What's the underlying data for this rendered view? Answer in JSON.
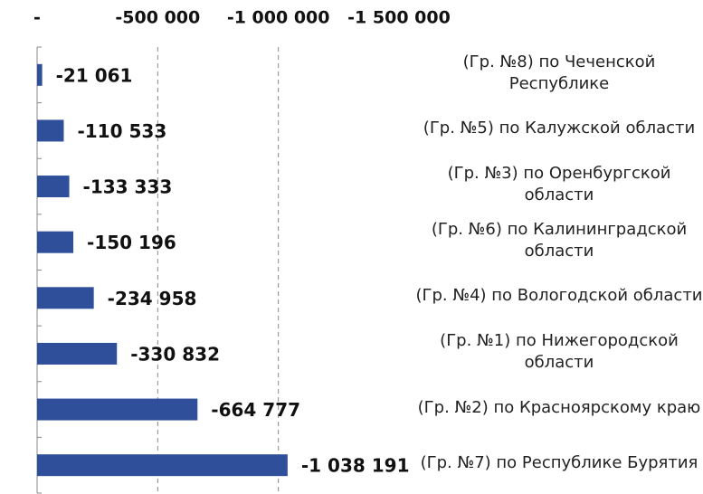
{
  "chart_data": {
    "type": "bar",
    "orientation": "horizontal",
    "categories": [
      "(Гр. №8) по Чеченской Республике",
      "(Гр. №5) по Калужской области",
      "(Гр. №3) по Оренбургской области",
      "(Гр. №6) по Калининградской области",
      "(Гр. №4) по Вологодской области",
      "(Гр. №1) по Нижегородской области",
      "(Гр. №2) по Красноярскому краю",
      "(Гр. №7) по Республике Бурятия"
    ],
    "values": [
      -21061,
      -110533,
      -133333,
      -150196,
      -234958,
      -330832,
      -664777,
      -1038191
    ],
    "value_labels": [
      "-21 061",
      "-110 533",
      "-133 333",
      "-150 196",
      "-234 958",
      "-330 832",
      "-664 777",
      "-1 038 191"
    ],
    "color": "#2f4f9a",
    "xlim": [
      0,
      -1500000
    ],
    "xticks": [
      {
        "value": 0,
        "label": "-"
      },
      {
        "value": -500000,
        "label": "-500 000"
      },
      {
        "value": -1000000,
        "label": "-1 000 000"
      },
      {
        "value": -1500000,
        "label": "-1 500 000"
      }
    ],
    "grid": true
  }
}
